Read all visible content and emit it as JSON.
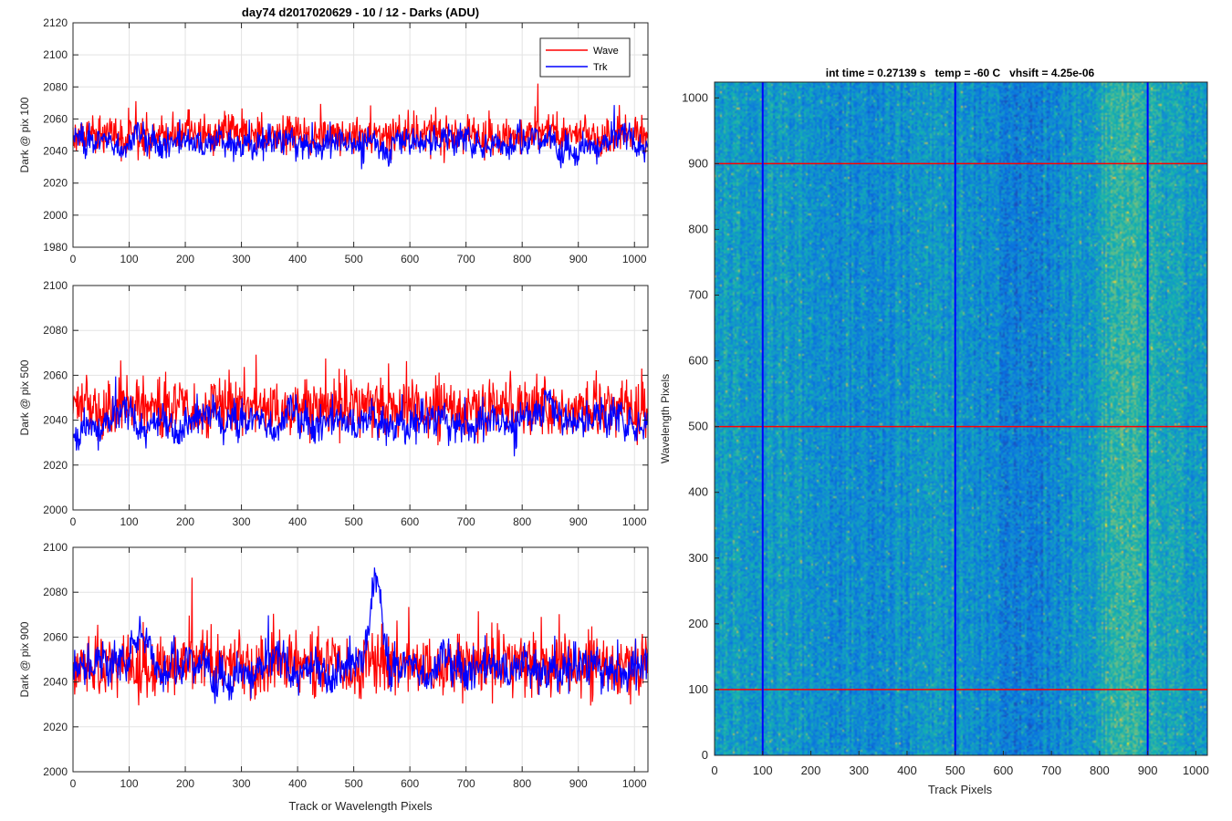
{
  "figure": {
    "title": "day74 d2017020629 - 10 / 12 - Darks (ADU)"
  },
  "chart_data": [
    {
      "type": "line",
      "ylabel": "Dark @ pix 100",
      "xlabel": "",
      "xlim": [
        0,
        1024
      ],
      "ylim": [
        1980,
        2120
      ],
      "xticks": [
        0,
        100,
        200,
        300,
        400,
        500,
        600,
        700,
        800,
        900,
        1000
      ],
      "yticks": [
        1980,
        2000,
        2020,
        2040,
        2060,
        2080,
        2100,
        2120
      ],
      "grid": true,
      "legend": {
        "position": "top-right",
        "entries": [
          "Wave",
          "Trk"
        ]
      },
      "series": [
        {
          "name": "Wave",
          "color": "#ff0000",
          "mean": 2050,
          "noise": 10,
          "values": []
        },
        {
          "name": "Trk",
          "color": "#0000ff",
          "mean": 2046,
          "noise": 7,
          "values": []
        }
      ]
    },
    {
      "type": "line",
      "ylabel": "Dark @ pix 500",
      "xlabel": "",
      "xlim": [
        0,
        1024
      ],
      "ylim": [
        2000,
        2100
      ],
      "xticks": [
        0,
        100,
        200,
        300,
        400,
        500,
        600,
        700,
        800,
        900,
        1000
      ],
      "yticks": [
        2000,
        2020,
        2040,
        2060,
        2080,
        2100
      ],
      "grid": true,
      "series": [
        {
          "name": "Wave",
          "color": "#ff0000",
          "mean": 2046,
          "noise": 11,
          "values": []
        },
        {
          "name": "Trk",
          "color": "#0000ff",
          "mean": 2040,
          "noise": 6,
          "values": []
        }
      ]
    },
    {
      "type": "line",
      "ylabel": "Dark @ pix 900",
      "xlabel": "Track or Wavelength Pixels",
      "xlim": [
        0,
        1024
      ],
      "ylim": [
        2000,
        2100
      ],
      "xticks": [
        0,
        100,
        200,
        300,
        400,
        500,
        600,
        700,
        800,
        900,
        1000
      ],
      "yticks": [
        2000,
        2020,
        2040,
        2060,
        2080,
        2100
      ],
      "grid": true,
      "series": [
        {
          "name": "Wave",
          "color": "#ff0000",
          "mean": 2048,
          "noise": 12,
          "values": []
        },
        {
          "name": "Trk",
          "color": "#0000ff",
          "mean": 2047,
          "noise": 7,
          "values": []
        }
      ]
    },
    {
      "type": "heatmap",
      "title": "int time = 0.27139 s   temp = -60 C   vhsift = 4.25e-06",
      "xlabel": "Track Pixels",
      "ylabel": "Wavelength Pixels",
      "xlim": [
        0,
        1024
      ],
      "ylim": [
        0,
        1024
      ],
      "xticks": [
        0,
        100,
        200,
        300,
        400,
        500,
        600,
        700,
        800,
        900,
        1000
      ],
      "yticks": [
        0,
        100,
        200,
        300,
        400,
        500,
        600,
        700,
        800,
        900,
        1000
      ],
      "colormap": "parula",
      "marker_rows": {
        "color": "#ff0000",
        "values": [
          100,
          500,
          900
        ]
      },
      "marker_cols": {
        "color": "#0000ff",
        "values": [
          100,
          500,
          900
        ]
      }
    }
  ]
}
